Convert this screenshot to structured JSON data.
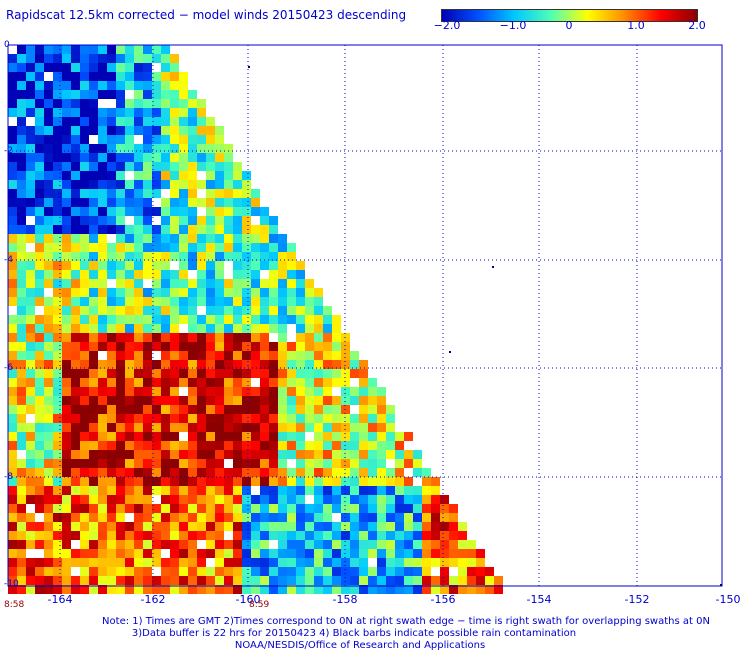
{
  "title": "Rapidscat 12.5km corrected − model winds 20150423 descending",
  "colorbar": {
    "labels": [
      "−2.0",
      "−1.0",
      "0",
      "1.0",
      "2.0"
    ],
    "colors": [
      "#0000b4",
      "#0050ff",
      "#00c8ff",
      "#50ffb4",
      "#ffff00",
      "#ff8c00",
      "#ff0000",
      "#8b0000"
    ]
  },
  "map": {
    "lon_labels": [
      "-164",
      "-162",
      "-160",
      "-158",
      "-156",
      "-154",
      "-152",
      "-150"
    ],
    "lat_labels": [
      "0",
      "-2",
      "-4",
      "-6",
      "-8",
      "-10"
    ],
    "lon_range": [
      -165,
      -150
    ],
    "lat_range": [
      -10,
      0
    ],
    "grid": true,
    "grid_color": "#0000cc"
  },
  "times": [
    "8:58",
    "8:59"
  ],
  "notes": [
    "Note: 1) Times are GMT 2)Times correspond to 0N at right swath edge − time is right swath for overlapping swaths at 0N",
    "3)Data buffer is 22 hrs for 20150423 4) Black barbs indicate possible rain contamination",
    "NOAA/NESDIS/Office of Research and Applications"
  ]
}
